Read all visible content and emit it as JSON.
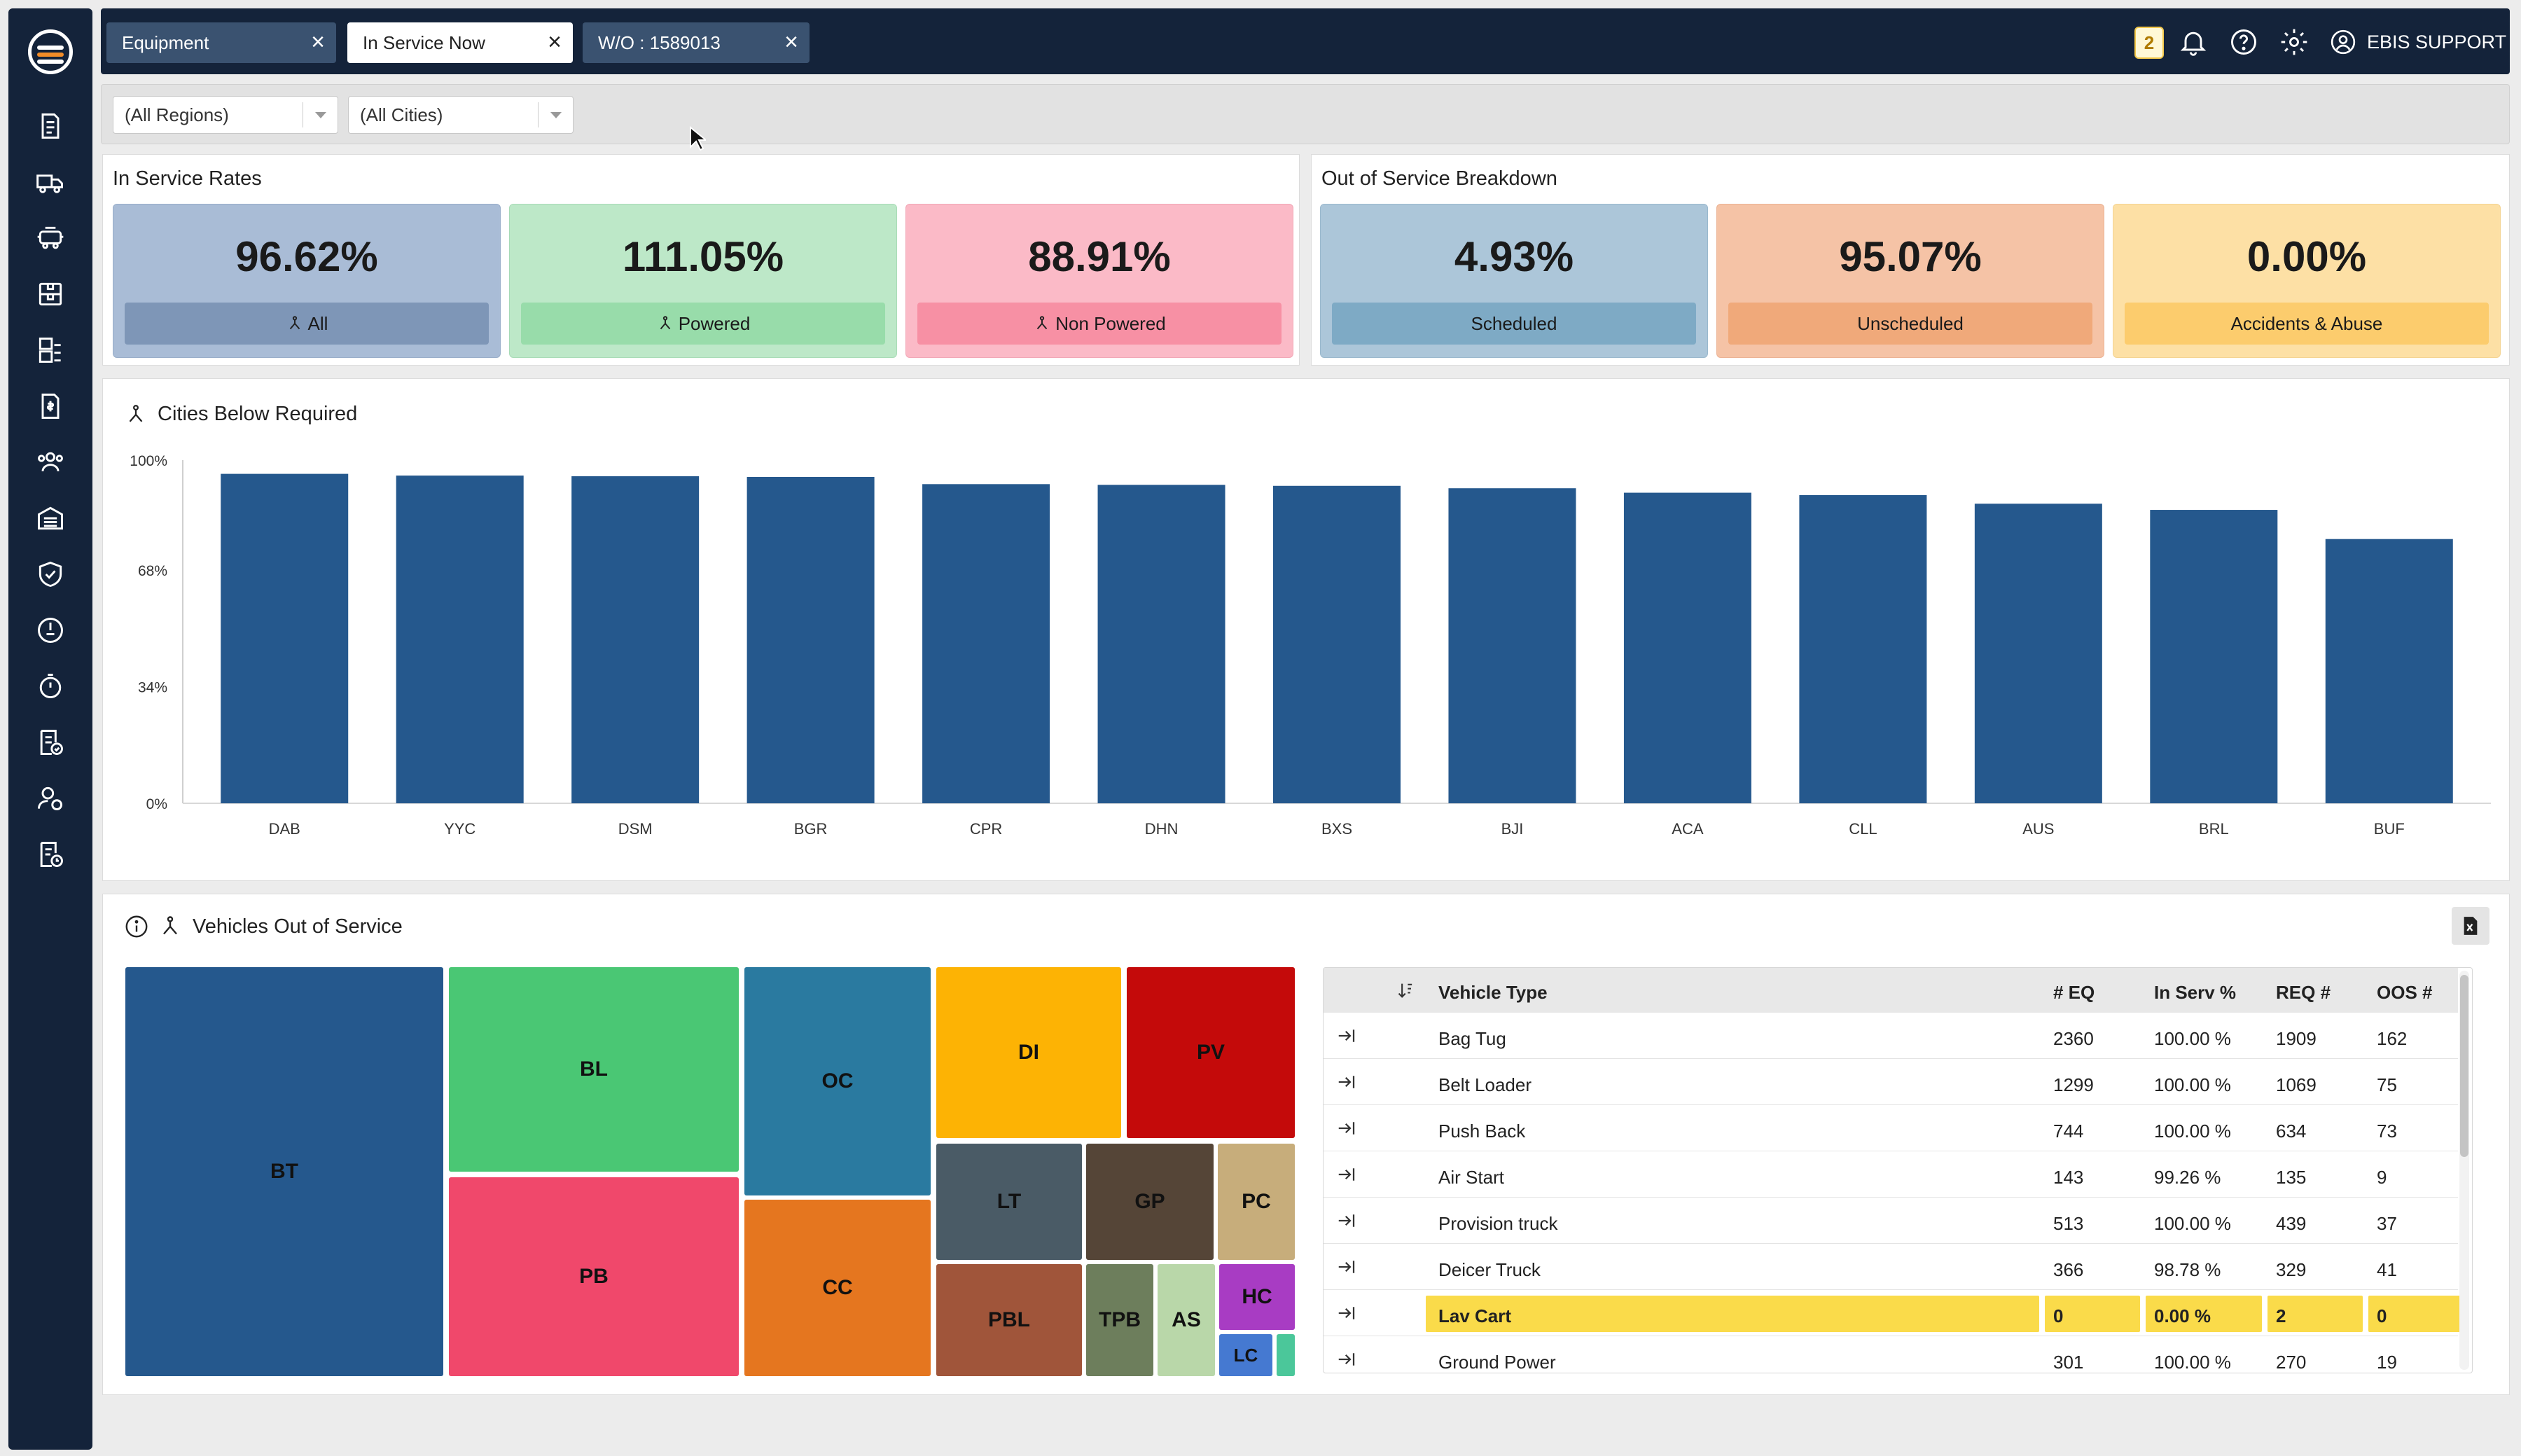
{
  "sidebar": {
    "items": [
      "documents-icon",
      "trucks-icon",
      "vehicle-icon",
      "boxes-icon",
      "warehouse-icon",
      "invoice-icon",
      "users-icon",
      "garage-icon",
      "shield-check-icon",
      "gauge-icon",
      "stopwatch-icon",
      "checklist-icon",
      "user-settings-icon",
      "report-clock-icon"
    ]
  },
  "tabs": [
    {
      "label": "Equipment",
      "close": "×"
    },
    {
      "label": "In Service Now",
      "close": "×"
    },
    {
      "label": "W/O : 1589013",
      "close": "×"
    }
  ],
  "topbar": {
    "notification_count": "2",
    "user_label": "EBIS SUPPORT"
  },
  "filters": {
    "region": "(All Regions)",
    "city": "(All Cities)"
  },
  "in_service": {
    "title": "In Service Rates",
    "cards": [
      {
        "value": "96.62%",
        "label": "All"
      },
      {
        "value": "111.05%",
        "label": "Powered"
      },
      {
        "value": "88.91%",
        "label": "Non Powered"
      }
    ]
  },
  "oos_breakdown": {
    "title": "Out of Service Breakdown",
    "cards": [
      {
        "value": "4.93%",
        "label": "Scheduled"
      },
      {
        "value": "95.07%",
        "label": "Unscheduled"
      },
      {
        "value": "0.00%",
        "label": "Accidents & Abuse"
      }
    ]
  },
  "colors": {
    "bar": "#25588d",
    "sidebar": "#14233a",
    "all_bg": "#a9bcd6",
    "all_lbl": "#7e96b7",
    "powered_bg": "#bde8c8",
    "powered_lbl": "#98dcaa",
    "nonpowered_bg": "#fbbac7",
    "nonpowered_lbl": "#f790a4",
    "scheduled_bg": "#acc6d9",
    "scheduled_lbl": "#7eaac5",
    "unscheduled_bg": "#f5c3a6",
    "unscheduled_lbl": "#f0a97a",
    "accidents_bg": "#fde0a5",
    "accidents_lbl": "#fccc6d",
    "highlight": "#fadb4a"
  },
  "cities_chart": {
    "title": "Cities Below Required",
    "chart_data": {
      "type": "bar",
      "title": "Cities Below Required",
      "categories": [
        "DAB",
        "YYC",
        "DSM",
        "BGR",
        "CPR",
        "DHN",
        "BXS",
        "BJI",
        "ACA",
        "CLL",
        "AUS",
        "BRL",
        "BUF"
      ],
      "values": [
        96,
        95.5,
        95.3,
        95.1,
        93,
        92.8,
        92.5,
        91.8,
        90.5,
        89.8,
        87.3,
        85.5,
        77
      ],
      "ytick_labels": [
        "100%",
        "68%",
        "34%",
        "0%"
      ],
      "ylim": [
        0,
        100
      ],
      "xlabel": "",
      "ylabel": ""
    }
  },
  "vehicles_oos": {
    "title": "Vehicles Out of Service",
    "treemap": [
      {
        "label": "BT",
        "color": "#25588d"
      },
      {
        "label": "BL",
        "color": "#4ac774"
      },
      {
        "label": "PB",
        "color": "#f0486b"
      },
      {
        "label": "OC",
        "color": "#2a7aa0"
      },
      {
        "label": "CC",
        "color": "#e5761f"
      },
      {
        "label": "DI",
        "color": "#fdb304"
      },
      {
        "label": "PV",
        "color": "#c40a0a"
      },
      {
        "label": "LT",
        "color": "#4a5b66"
      },
      {
        "label": "GP",
        "color": "#554537"
      },
      {
        "label": "PC",
        "color": "#c7ad7b"
      },
      {
        "label": "PBL",
        "color": "#a0553a"
      },
      {
        "label": "TPB",
        "color": "#6d7e5c"
      },
      {
        "label": "AS",
        "color": "#b9d7a9"
      },
      {
        "label": "HC",
        "color": "#a83cc3"
      },
      {
        "label": "LC",
        "color": "#4579d1"
      },
      {
        "label": "",
        "color": "#4bc79a"
      }
    ],
    "table": {
      "headers": [
        "Vehicle Type",
        "# EQ",
        "In Serv %",
        "REQ #",
        "OOS #"
      ],
      "rows": [
        {
          "type": "Bag Tug",
          "eq": "2360",
          "inserv": "100.00 %",
          "req": "1909",
          "oos": "162"
        },
        {
          "type": "Belt Loader",
          "eq": "1299",
          "inserv": "100.00 %",
          "req": "1069",
          "oos": "75"
        },
        {
          "type": "Push Back",
          "eq": "744",
          "inserv": "100.00 %",
          "req": "634",
          "oos": "73"
        },
        {
          "type": "Air Start",
          "eq": "143",
          "inserv": "99.26 %",
          "req": "135",
          "oos": "9"
        },
        {
          "type": "Provision truck",
          "eq": "513",
          "inserv": "100.00 %",
          "req": "439",
          "oos": "37"
        },
        {
          "type": "Deicer Truck",
          "eq": "366",
          "inserv": "98.78 %",
          "req": "329",
          "oos": "41"
        },
        {
          "type": "Lav Cart",
          "eq": "0",
          "inserv": "0.00 %",
          "req": "2",
          "oos": "0"
        },
        {
          "type": "Ground Power",
          "eq": "301",
          "inserv": "100.00 %",
          "req": "270",
          "oos": "19"
        }
      ]
    }
  }
}
